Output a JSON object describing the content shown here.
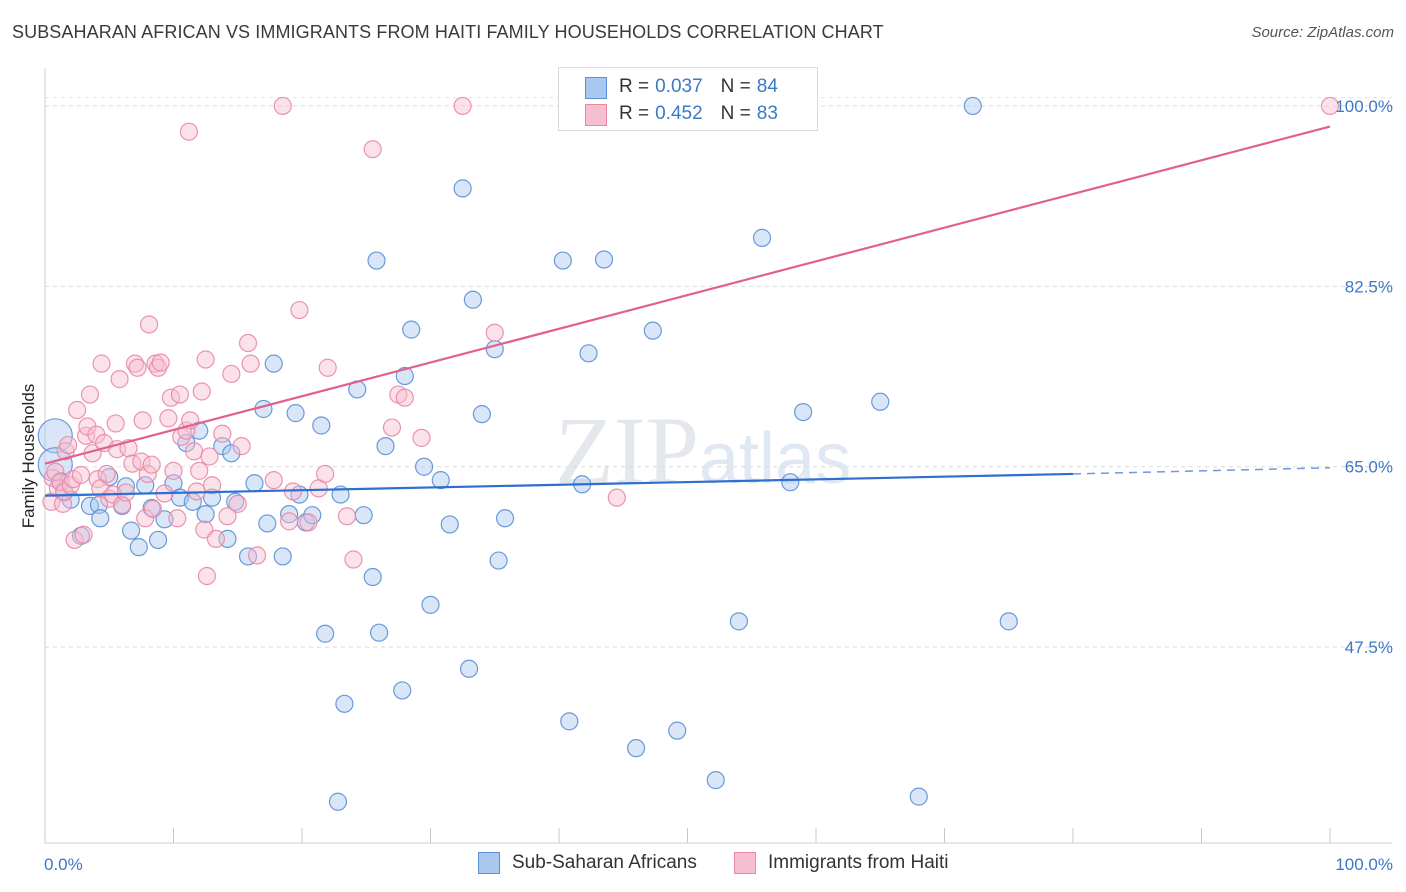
{
  "title": "SUBSAHARAN AFRICAN VS IMMIGRANTS FROM HAITI FAMILY HOUSEHOLDS CORRELATION CHART",
  "source": "Source: ZipAtlas.com",
  "watermark": {
    "zip": "ZIP",
    "atlas": "atlas"
  },
  "legend": {
    "rows": [
      {
        "r_label": "R =",
        "r_value": "0.037",
        "n_label": "N =",
        "n_value": "84"
      },
      {
        "r_label": "R =",
        "r_value": "0.452",
        "n_label": "N =",
        "n_value": "83"
      }
    ]
  },
  "bottom_legend": [
    "Sub-Saharan Africans",
    "Immigrants from Haiti"
  ],
  "colors": {
    "blue_fill": "#aac8ef",
    "blue_stroke": "#5b8fd6",
    "blue_line": "#2f6fd0",
    "pink_fill": "#f6bfd0",
    "pink_stroke": "#e988a6",
    "pink_line": "#e0608e",
    "tick_text": "#3b78c7"
  },
  "chart_data": {
    "type": "scatter",
    "title": "SUBSAHARAN AFRICAN VS IMMIGRANTS FROM HAITI FAMILY HOUSEHOLDS CORRELATION CHART",
    "xlabel": "",
    "ylabel": "Family Households",
    "xlim": [
      0,
      100
    ],
    "ylim": [
      28.5,
      103
    ],
    "x_tick_labels": [
      "0.0%",
      "100.0%"
    ],
    "y_ticks": [
      47.5,
      65.0,
      82.5,
      100.0
    ],
    "y_tick_labels": [
      "47.5%",
      "65.0%",
      "82.5%",
      "100.0%"
    ],
    "grid": true,
    "series": [
      {
        "name": "Sub-Saharan Africans",
        "color": "#5b8fd6",
        "trend": {
          "x0": 0,
          "y0": 62.2,
          "x1": 80,
          "y1": 64.3,
          "dashed_to": 100,
          "dashed_y": 64.9
        },
        "points": [
          {
            "x": 0.8,
            "y": 68.0,
            "big": true
          },
          {
            "x": 0.8,
            "y": 65.2,
            "big": true
          },
          {
            "x": 1.2,
            "y": 63.6
          },
          {
            "x": 1.5,
            "y": 62.5
          },
          {
            "x": 2.0,
            "y": 61.8
          },
          {
            "x": 2.8,
            "y": 58.3
          },
          {
            "x": 3.5,
            "y": 61.2
          },
          {
            "x": 4.2,
            "y": 61.3
          },
          {
            "x": 4.3,
            "y": 60.0
          },
          {
            "x": 5.0,
            "y": 64.0
          },
          {
            "x": 6.0,
            "y": 61.2
          },
          {
            "x": 6.3,
            "y": 63.1
          },
          {
            "x": 6.7,
            "y": 58.8
          },
          {
            "x": 7.3,
            "y": 57.2
          },
          {
            "x": 7.8,
            "y": 63.2
          },
          {
            "x": 8.3,
            "y": 61.0
          },
          {
            "x": 8.8,
            "y": 57.9
          },
          {
            "x": 9.3,
            "y": 59.9
          },
          {
            "x": 10.0,
            "y": 63.4
          },
          {
            "x": 10.5,
            "y": 62.0
          },
          {
            "x": 11.0,
            "y": 67.3
          },
          {
            "x": 11.5,
            "y": 61.6
          },
          {
            "x": 12.0,
            "y": 68.5
          },
          {
            "x": 12.5,
            "y": 60.4
          },
          {
            "x": 13.0,
            "y": 62.0
          },
          {
            "x": 13.8,
            "y": 67.0
          },
          {
            "x": 14.2,
            "y": 58.0
          },
          {
            "x": 14.5,
            "y": 66.3
          },
          {
            "x": 14.8,
            "y": 61.6
          },
          {
            "x": 15.8,
            "y": 56.3
          },
          {
            "x": 16.3,
            "y": 63.4
          },
          {
            "x": 17.0,
            "y": 70.6
          },
          {
            "x": 17.3,
            "y": 59.5
          },
          {
            "x": 17.8,
            "y": 75.0
          },
          {
            "x": 18.5,
            "y": 56.3
          },
          {
            "x": 19.0,
            "y": 60.4
          },
          {
            "x": 19.5,
            "y": 70.2
          },
          {
            "x": 19.8,
            "y": 62.3
          },
          {
            "x": 20.3,
            "y": 59.6
          },
          {
            "x": 20.8,
            "y": 60.3
          },
          {
            "x": 21.5,
            "y": 69.0
          },
          {
            "x": 21.8,
            "y": 48.8
          },
          {
            "x": 22.8,
            "y": 32.5
          },
          {
            "x": 23.0,
            "y": 62.3
          },
          {
            "x": 23.3,
            "y": 42.0
          },
          {
            "x": 24.3,
            "y": 72.5
          },
          {
            "x": 24.8,
            "y": 60.3
          },
          {
            "x": 25.5,
            "y": 54.3
          },
          {
            "x": 25.8,
            "y": 85.0
          },
          {
            "x": 26.0,
            "y": 48.9
          },
          {
            "x": 26.5,
            "y": 67.0
          },
          {
            "x": 27.8,
            "y": 43.3
          },
          {
            "x": 28.0,
            "y": 73.8
          },
          {
            "x": 28.5,
            "y": 78.3
          },
          {
            "x": 29.5,
            "y": 65.0
          },
          {
            "x": 30.0,
            "y": 51.6
          },
          {
            "x": 30.8,
            "y": 63.7
          },
          {
            "x": 31.5,
            "y": 59.4
          },
          {
            "x": 32.5,
            "y": 92.0
          },
          {
            "x": 33.0,
            "y": 45.4
          },
          {
            "x": 33.3,
            "y": 81.2
          },
          {
            "x": 34.0,
            "y": 70.1
          },
          {
            "x": 35.0,
            "y": 76.4
          },
          {
            "x": 35.3,
            "y": 55.9
          },
          {
            "x": 35.8,
            "y": 60.0
          },
          {
            "x": 40.3,
            "y": 85.0
          },
          {
            "x": 40.8,
            "y": 40.3
          },
          {
            "x": 41.8,
            "y": 63.3
          },
          {
            "x": 42.3,
            "y": 76.0
          },
          {
            "x": 43.5,
            "y": 85.1
          },
          {
            "x": 46.0,
            "y": 37.7
          },
          {
            "x": 47.3,
            "y": 78.2
          },
          {
            "x": 49.2,
            "y": 39.4
          },
          {
            "x": 52.2,
            "y": 34.6
          },
          {
            "x": 54.0,
            "y": 50.0
          },
          {
            "x": 55.8,
            "y": 87.2
          },
          {
            "x": 58.0,
            "y": 63.5
          },
          {
            "x": 59.0,
            "y": 70.3
          },
          {
            "x": 65.0,
            "y": 71.3
          },
          {
            "x": 68.0,
            "y": 33.0
          },
          {
            "x": 72.2,
            "y": 100.0
          },
          {
            "x": 75.0,
            "y": 50.0
          }
        ]
      },
      {
        "name": "Immigrants from Haiti",
        "color": "#e988a6",
        "trend": {
          "x0": 0,
          "y0": 65.3,
          "x1": 100,
          "y1": 98.0
        },
        "points": [
          {
            "x": 0.5,
            "y": 61.6
          },
          {
            "x": 0.6,
            "y": 63.9
          },
          {
            "x": 0.8,
            "y": 64.5
          },
          {
            "x": 1.0,
            "y": 62.9
          },
          {
            "x": 1.2,
            "y": 63.5
          },
          {
            "x": 1.4,
            "y": 61.4
          },
          {
            "x": 1.5,
            "y": 62.6
          },
          {
            "x": 1.6,
            "y": 66.5
          },
          {
            "x": 1.8,
            "y": 67.1
          },
          {
            "x": 2.0,
            "y": 63.2
          },
          {
            "x": 2.2,
            "y": 63.8
          },
          {
            "x": 2.3,
            "y": 57.9
          },
          {
            "x": 2.5,
            "y": 70.5
          },
          {
            "x": 2.8,
            "y": 64.2
          },
          {
            "x": 3.0,
            "y": 58.4
          },
          {
            "x": 3.2,
            "y": 68.0
          },
          {
            "x": 3.3,
            "y": 68.9
          },
          {
            "x": 3.5,
            "y": 72.0
          },
          {
            "x": 3.7,
            "y": 66.3
          },
          {
            "x": 4.0,
            "y": 68.1
          },
          {
            "x": 4.1,
            "y": 63.8
          },
          {
            "x": 4.3,
            "y": 62.9
          },
          {
            "x": 4.4,
            "y": 75.0
          },
          {
            "x": 4.6,
            "y": 67.3
          },
          {
            "x": 4.8,
            "y": 64.3
          },
          {
            "x": 5.0,
            "y": 61.9
          },
          {
            "x": 5.3,
            "y": 62.3
          },
          {
            "x": 5.5,
            "y": 69.2
          },
          {
            "x": 5.6,
            "y": 66.7
          },
          {
            "x": 5.8,
            "y": 73.5
          },
          {
            "x": 6.0,
            "y": 61.3
          },
          {
            "x": 6.3,
            "y": 62.5
          },
          {
            "x": 6.5,
            "y": 66.8
          },
          {
            "x": 6.8,
            "y": 65.3
          },
          {
            "x": 7.0,
            "y": 75.0
          },
          {
            "x": 7.2,
            "y": 74.6
          },
          {
            "x": 7.5,
            "y": 65.5
          },
          {
            "x": 7.6,
            "y": 69.5
          },
          {
            "x": 7.8,
            "y": 60.0
          },
          {
            "x": 8.0,
            "y": 64.3
          },
          {
            "x": 8.1,
            "y": 78.8
          },
          {
            "x": 8.3,
            "y": 65.2
          },
          {
            "x": 8.4,
            "y": 60.9
          },
          {
            "x": 8.6,
            "y": 75.0
          },
          {
            "x": 8.8,
            "y": 74.6
          },
          {
            "x": 9.0,
            "y": 75.1
          },
          {
            "x": 9.3,
            "y": 62.4
          },
          {
            "x": 9.6,
            "y": 69.7
          },
          {
            "x": 9.8,
            "y": 71.7
          },
          {
            "x": 10.0,
            "y": 64.6
          },
          {
            "x": 10.3,
            "y": 60.0
          },
          {
            "x": 10.5,
            "y": 72.0
          },
          {
            "x": 10.6,
            "y": 67.9
          },
          {
            "x": 11.0,
            "y": 68.5
          },
          {
            "x": 11.2,
            "y": 97.5
          },
          {
            "x": 11.3,
            "y": 69.5
          },
          {
            "x": 11.6,
            "y": 66.5
          },
          {
            "x": 11.8,
            "y": 62.6
          },
          {
            "x": 12.0,
            "y": 64.6
          },
          {
            "x": 12.2,
            "y": 72.3
          },
          {
            "x": 12.4,
            "y": 58.9
          },
          {
            "x": 12.5,
            "y": 75.4
          },
          {
            "x": 12.6,
            "y": 54.4
          },
          {
            "x": 12.8,
            "y": 66.0
          },
          {
            "x": 13.0,
            "y": 63.2
          },
          {
            "x": 13.3,
            "y": 58.0
          },
          {
            "x": 13.8,
            "y": 68.2
          },
          {
            "x": 14.2,
            "y": 60.2
          },
          {
            "x": 14.5,
            "y": 74.0
          },
          {
            "x": 15.0,
            "y": 61.4
          },
          {
            "x": 15.3,
            "y": 67.0
          },
          {
            "x": 15.8,
            "y": 77.0
          },
          {
            "x": 16.0,
            "y": 75.0
          },
          {
            "x": 16.5,
            "y": 56.4
          },
          {
            "x": 17.8,
            "y": 63.7
          },
          {
            "x": 18.5,
            "y": 100.0
          },
          {
            "x": 19.0,
            "y": 59.7
          },
          {
            "x": 19.3,
            "y": 62.6
          },
          {
            "x": 19.8,
            "y": 80.2
          },
          {
            "x": 20.5,
            "y": 59.6
          },
          {
            "x": 21.3,
            "y": 62.9
          },
          {
            "x": 21.8,
            "y": 64.3
          },
          {
            "x": 22.0,
            "y": 74.6
          },
          {
            "x": 23.5,
            "y": 60.2
          },
          {
            "x": 24.0,
            "y": 56.0
          },
          {
            "x": 25.5,
            "y": 95.8
          },
          {
            "x": 27.0,
            "y": 68.8
          },
          {
            "x": 27.5,
            "y": 72.0
          },
          {
            "x": 28.0,
            "y": 71.7
          },
          {
            "x": 29.3,
            "y": 67.8
          },
          {
            "x": 32.5,
            "y": 100.0
          },
          {
            "x": 35.0,
            "y": 78.0
          },
          {
            "x": 44.5,
            "y": 62.0
          },
          {
            "x": 100.0,
            "y": 100.0
          }
        ]
      }
    ]
  }
}
